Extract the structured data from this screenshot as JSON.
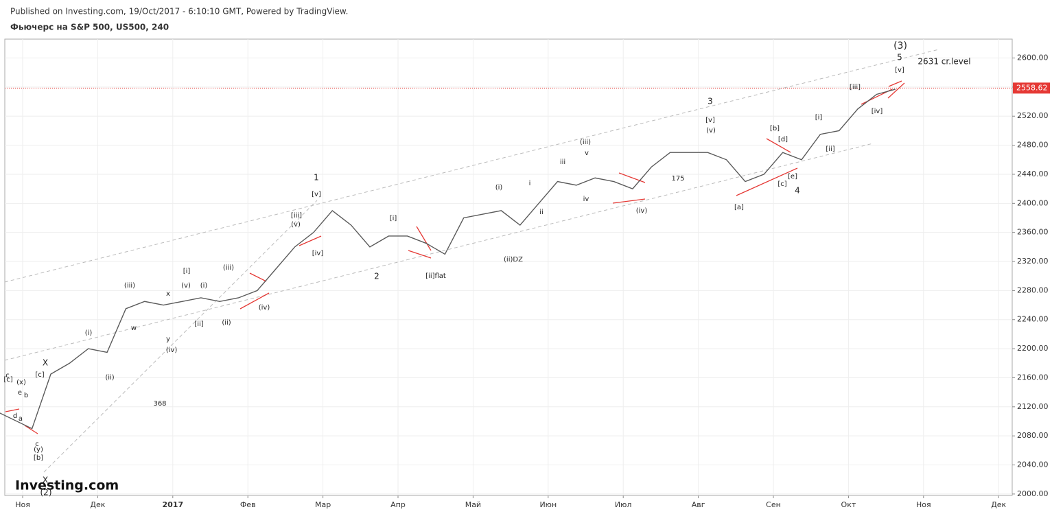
{
  "header": {
    "published": "Published on Investing.com, 19/Oct/2017 - 6:10:10 GMT, Powered by TradingView.",
    "title": "Фьючерс на S&P 500, US500, 240"
  },
  "logo": "Investing.com",
  "chart_data": {
    "type": "line",
    "x": [
      "2016-10",
      "2016-11",
      "2016-11",
      "2016-11",
      "2016-11",
      "2016-12",
      "2016-12",
      "2016-12",
      "2016-12",
      "2017-01",
      "2017-01",
      "2017-01",
      "2017-01",
      "2017-02",
      "2017-02",
      "2017-02",
      "2017-02",
      "2017-03",
      "2017-03",
      "2017-03",
      "2017-03",
      "2017-04",
      "2017-04",
      "2017-04",
      "2017-04",
      "2017-05",
      "2017-05",
      "2017-05",
      "2017-05",
      "2017-06",
      "2017-06",
      "2017-06",
      "2017-06",
      "2017-07",
      "2017-07",
      "2017-07",
      "2017-07",
      "2017-08",
      "2017-08",
      "2017-08",
      "2017-08",
      "2017-09",
      "2017-09",
      "2017-09",
      "2017-09",
      "2017-10",
      "2017-10",
      "2017-10"
    ],
    "series": [
      {
        "color": "#5a5a5a",
        "values": [
          2140,
          2090,
          2165,
          2180,
          2200,
          2195,
          2255,
          2265,
          2260,
          2265,
          2270,
          2265,
          2270,
          2280,
          2310,
          2340,
          2360,
          2390,
          2370,
          2340,
          2355,
          2355,
          2345,
          2330,
          2380,
          2385,
          2390,
          2370,
          2400,
          2430,
          2425,
          2435,
          2430,
          2420,
          2450,
          2470,
          2470,
          2470,
          2460,
          2430,
          2440,
          2470,
          2460,
          2495,
          2500,
          2530,
          2550,
          2557
        ]
      }
    ],
    "ylim": [
      1998,
      2626
    ],
    "yticks": [
      {
        "value": 2000,
        "label": "2000.00"
      },
      {
        "value": 2040,
        "label": "2040.00"
      },
      {
        "value": 2080,
        "label": "2080.00"
      },
      {
        "value": 2120,
        "label": "2120.00"
      },
      {
        "value": 2160,
        "label": "2160.00"
      },
      {
        "value": 2200,
        "label": "2200.00"
      },
      {
        "value": 2240,
        "label": "2240.00"
      },
      {
        "value": 2280,
        "label": "2280.00"
      },
      {
        "value": 2320,
        "label": "2320.00"
      },
      {
        "value": 2360,
        "label": "2360.00"
      },
      {
        "value": 2400,
        "label": "2400.00"
      },
      {
        "value": 2440,
        "label": "2440.00"
      },
      {
        "value": 2480,
        "label": "2480.00"
      },
      {
        "value": 2520,
        "label": "2520.00"
      },
      {
        "value": 2560,
        "label": "2560.00"
      },
      {
        "value": 2600,
        "label": "2600.00"
      }
    ],
    "xticks": [
      {
        "value": "2016-11",
        "label": "Ноя"
      },
      {
        "value": "2016-12",
        "label": "Дек"
      },
      {
        "value": "2017-01",
        "label": "2017"
      },
      {
        "value": "2017-02",
        "label": "Фев"
      },
      {
        "value": "2017-03",
        "label": "Мар"
      },
      {
        "value": "2017-04",
        "label": "Апр"
      },
      {
        "value": "2017-05",
        "label": "Май"
      },
      {
        "value": "2017-06",
        "label": "Июн"
      },
      {
        "value": "2017-07",
        "label": "Июл"
      },
      {
        "value": "2017-08",
        "label": "Авг"
      },
      {
        "value": "2017-09",
        "label": "Сен"
      },
      {
        "value": "2017-10",
        "label": "Окт"
      },
      {
        "value": "2017-11",
        "label": "Ноя"
      },
      {
        "value": "2017-12",
        "label": "Дек"
      }
    ],
    "grid": true,
    "current_price": 2558.62,
    "current_price_color": "#e53935",
    "annotations": [
      "(3)",
      "5",
      "[v]",
      "2631 cr.level",
      "[iii]",
      "[iv]",
      "[i]",
      "[ii]",
      "3",
      "[v]",
      "(v)",
      "[b]",
      "[d]",
      "[e]",
      "[c]",
      "4",
      "[a]",
      "175",
      "(iii)",
      "v",
      "iii",
      "iv",
      "i",
      "ii",
      "(i)",
      "(ii)DZ",
      "(iv)",
      "[i]",
      "[ii]flat",
      "2",
      "1",
      "[v]",
      "[iii]",
      "(v)",
      "[iv]",
      "(iii)",
      "(iv)",
      "(ii)",
      "[i]",
      "(v)",
      "(i)",
      "[ii]",
      "x",
      "y",
      "(iv)",
      "w",
      "(iii)",
      "(i)",
      "(ii)",
      "368",
      "X",
      "[c]",
      "(x)",
      "c",
      "[c]",
      "e",
      "b",
      "d",
      "a",
      "c",
      "(y)",
      "[b]",
      "X",
      "(2)"
    ]
  }
}
